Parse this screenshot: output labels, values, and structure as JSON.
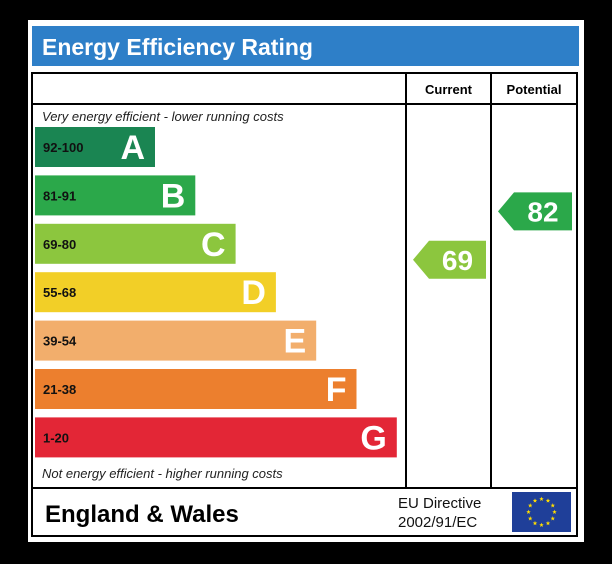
{
  "chart_data": {
    "type": "bar",
    "title": "Energy Efficiency Rating",
    "top_caption": "Very energy efficient - lower running costs",
    "bottom_caption": "Not energy efficient - higher running costs",
    "columns": {
      "current": "Current",
      "potential": "Potential"
    },
    "bands": [
      {
        "letter": "A",
        "range": "92-100",
        "min": 92,
        "max": 100,
        "color": "#1a8552"
      },
      {
        "letter": "B",
        "range": "81-91",
        "min": 81,
        "max": 91,
        "color": "#2ba84a"
      },
      {
        "letter": "C",
        "range": "69-80",
        "min": 69,
        "max": 80,
        "color": "#8cc63e"
      },
      {
        "letter": "D",
        "range": "55-68",
        "min": 55,
        "max": 68,
        "color": "#f2cf27"
      },
      {
        "letter": "E",
        "range": "39-54",
        "min": 39,
        "max": 54,
        "color": "#f2ae6c"
      },
      {
        "letter": "F",
        "range": "21-38",
        "min": 21,
        "max": 38,
        "color": "#ec7f2e"
      },
      {
        "letter": "G",
        "range": "1-20",
        "min": 1,
        "max": 20,
        "color": "#e32636"
      }
    ],
    "current": {
      "value": 69,
      "band": "C",
      "color": "#8cc63e"
    },
    "potential": {
      "value": 82,
      "band": "B",
      "color": "#2ba84a"
    },
    "footer": {
      "region": "England & Wales",
      "directive_line1": "EU Directive",
      "directive_line2": "2002/91/EC"
    },
    "colors": {
      "header": "#2e7fc8",
      "border": "#000000",
      "flag": "#1f3f99",
      "stars": "#ffdd00"
    }
  }
}
